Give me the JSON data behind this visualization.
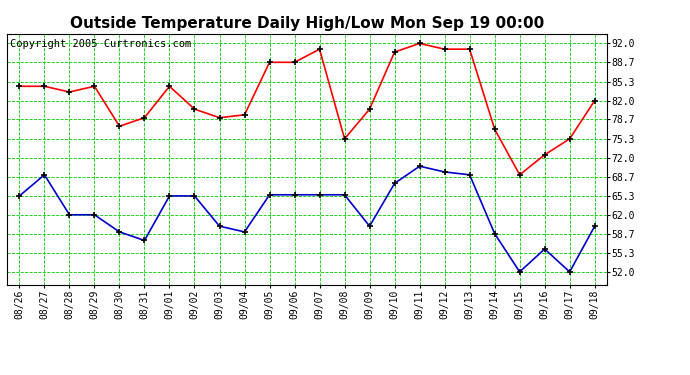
{
  "title": "Outside Temperature Daily High/Low Mon Sep 19 00:00",
  "copyright": "Copyright 2005 Curtronics.com",
  "x_labels": [
    "08/26",
    "08/27",
    "08/28",
    "08/29",
    "08/30",
    "08/31",
    "09/01",
    "09/02",
    "09/03",
    "09/04",
    "09/05",
    "09/06",
    "09/07",
    "09/08",
    "09/09",
    "09/10",
    "09/11",
    "09/12",
    "09/13",
    "09/14",
    "09/15",
    "09/16",
    "09/17",
    "09/18"
  ],
  "high_temps": [
    84.5,
    84.5,
    83.5,
    84.5,
    77.5,
    79.0,
    84.5,
    80.5,
    79.0,
    79.5,
    88.7,
    88.7,
    91.0,
    75.3,
    80.5,
    90.5,
    92.0,
    91.0,
    91.0,
    77.0,
    69.0,
    72.5,
    75.3,
    82.0
  ],
  "low_temps": [
    65.3,
    69.0,
    62.0,
    62.0,
    59.0,
    57.5,
    65.3,
    65.3,
    60.0,
    59.0,
    65.5,
    65.5,
    65.5,
    65.5,
    60.0,
    67.5,
    70.5,
    69.5,
    69.0,
    58.7,
    52.0,
    56.0,
    52.0,
    60.0
  ],
  "high_color": "#ff0000",
  "low_color": "#0000cc",
  "grid_color": "#00cc00",
  "bg_color": "#ffffff",
  "plot_bg_color": "#ffffff",
  "y_ticks": [
    52.0,
    55.3,
    58.7,
    62.0,
    65.3,
    68.7,
    72.0,
    75.3,
    78.7,
    82.0,
    85.3,
    88.7,
    92.0
  ],
  "ylim": [
    49.7,
    93.7
  ],
  "title_fontsize": 11,
  "copyright_fontsize": 7.5,
  "tick_fontsize": 7,
  "marker_size": 4
}
